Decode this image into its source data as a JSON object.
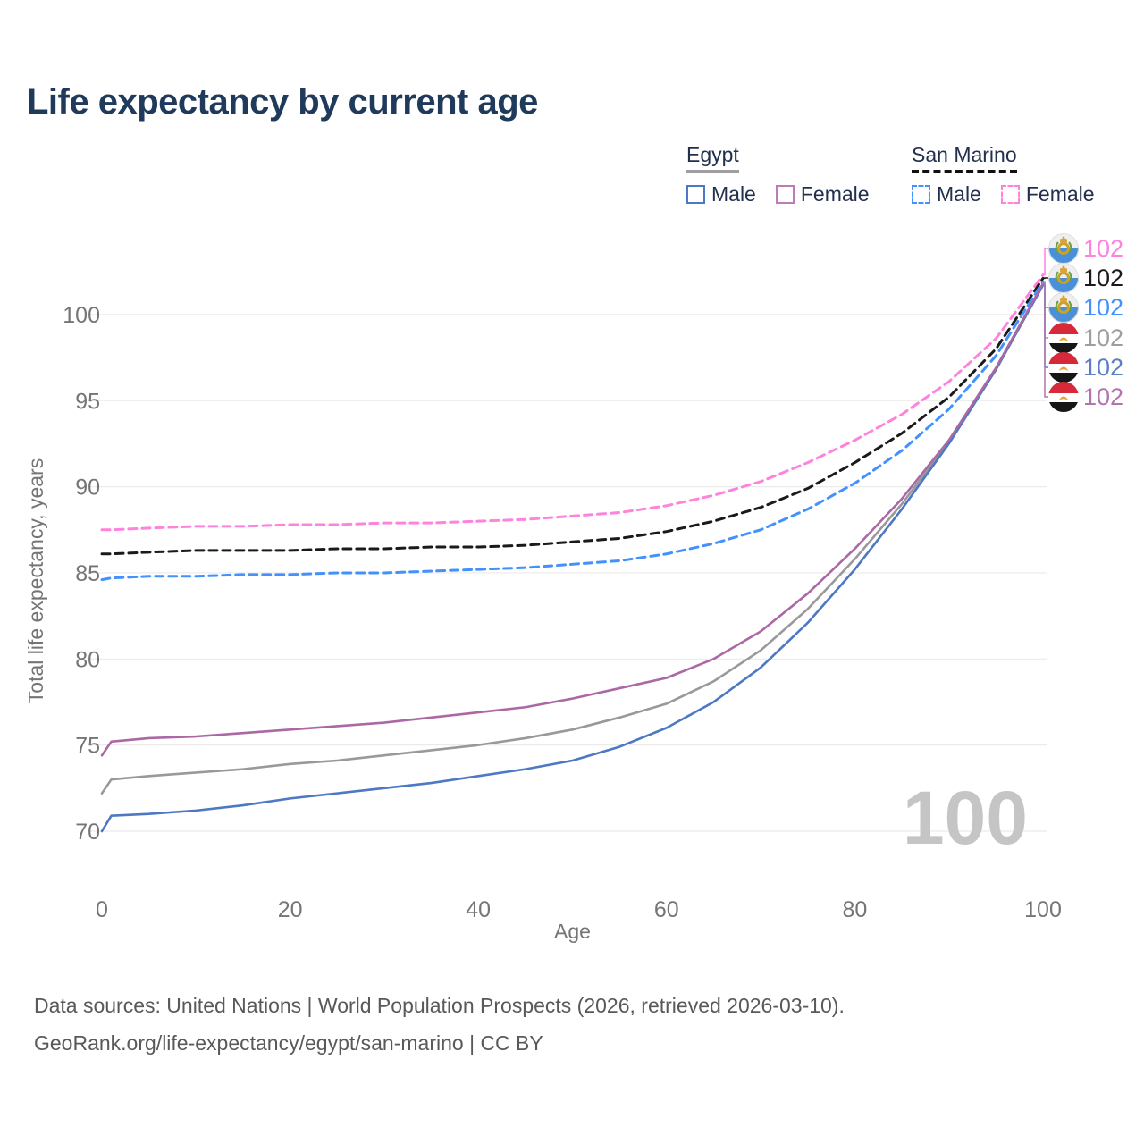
{
  "title": "Life expectancy by current age",
  "legend": {
    "groups": [
      {
        "name": "Egypt",
        "style": "solid",
        "underline_color": "#9e9e9e",
        "items": [
          {
            "label": "Male",
            "color": "#4d78c4"
          },
          {
            "label": "Female",
            "color": "#bd7cb5"
          }
        ]
      },
      {
        "name": "San Marino",
        "style": "dashed",
        "underline_color": "#111111",
        "items": [
          {
            "label": "Male",
            "color": "#4291ff"
          },
          {
            "label": "Female",
            "color": "#ff82dd"
          }
        ]
      }
    ]
  },
  "chart_data": {
    "type": "line",
    "title": "Life expectancy by current age",
    "xlabel": "Age",
    "ylabel": "Total life expectancy, years",
    "x_ticks": [
      0,
      20,
      40,
      60,
      80,
      100
    ],
    "y_ticks": [
      70,
      75,
      80,
      85,
      90,
      95,
      100
    ],
    "xlim": [
      0,
      100
    ],
    "ylim": [
      69,
      103
    ],
    "grid": "horizontal-only",
    "age_indicator": "100",
    "x": [
      0,
      1,
      5,
      10,
      15,
      20,
      25,
      30,
      35,
      40,
      45,
      50,
      55,
      60,
      65,
      70,
      75,
      80,
      85,
      90,
      95,
      100
    ],
    "series": [
      {
        "name": "San Marino Female",
        "country": "San Marino",
        "sex": "Female",
        "color": "#ff82dd",
        "dash": "dashed",
        "flag": "san-marino",
        "end_label": "102",
        "label_color": "#ff82dd",
        "row": 0,
        "values": [
          87.5,
          87.5,
          87.6,
          87.7,
          87.7,
          87.8,
          87.8,
          87.9,
          87.9,
          88.0,
          88.1,
          88.3,
          88.5,
          88.9,
          89.5,
          90.3,
          91.4,
          92.7,
          94.2,
          96.1,
          98.6,
          102.3
        ]
      },
      {
        "name": "San Marino Both sexes",
        "country": "San Marino",
        "sex": "Both",
        "color": "#1a1a1a",
        "dash": "dashed",
        "flag": "san-marino",
        "end_label": "102",
        "label_color": "#1a1a1a",
        "row": 1,
        "values": [
          86.1,
          86.1,
          86.2,
          86.3,
          86.3,
          86.3,
          86.4,
          86.4,
          86.5,
          86.5,
          86.6,
          86.8,
          87.0,
          87.4,
          88.0,
          88.8,
          89.9,
          91.4,
          93.1,
          95.2,
          98.0,
          102.1
        ]
      },
      {
        "name": "San Marino Male",
        "country": "San Marino",
        "sex": "Male",
        "color": "#4291ff",
        "dash": "dashed",
        "flag": "san-marino",
        "end_label": "102",
        "label_color": "#4291ff",
        "row": 2,
        "values": [
          84.6,
          84.7,
          84.8,
          84.8,
          84.9,
          84.9,
          85.0,
          85.0,
          85.1,
          85.2,
          85.3,
          85.5,
          85.7,
          86.1,
          86.7,
          87.5,
          88.7,
          90.2,
          92.1,
          94.5,
          97.6,
          101.9
        ]
      },
      {
        "name": "Egypt Both sexes",
        "country": "Egypt",
        "sex": "Both",
        "color": "#999999",
        "dash": "solid",
        "flag": "egypt",
        "end_label": "102",
        "label_color": "#9e9e9e",
        "row": 3,
        "values": [
          72.2,
          73.0,
          73.2,
          73.4,
          73.6,
          73.9,
          74.1,
          74.4,
          74.7,
          75.0,
          75.4,
          75.9,
          76.6,
          77.4,
          78.7,
          80.5,
          82.9,
          85.8,
          89.0,
          92.6,
          96.8,
          101.8
        ]
      },
      {
        "name": "Egypt Male",
        "country": "Egypt",
        "sex": "Male",
        "color": "#4d78c4",
        "dash": "solid",
        "flag": "egypt",
        "end_label": "102",
        "label_color": "#5b7fc4",
        "row": 4,
        "values": [
          70.0,
          70.9,
          71.0,
          71.2,
          71.5,
          71.9,
          72.2,
          72.5,
          72.8,
          73.2,
          73.6,
          74.1,
          74.9,
          76.0,
          77.5,
          79.5,
          82.1,
          85.2,
          88.7,
          92.5,
          96.8,
          101.7
        ]
      },
      {
        "name": "Egypt Female",
        "country": "Egypt",
        "sex": "Female",
        "color": "#ab68a5",
        "dash": "solid",
        "flag": "egypt",
        "end_label": "102",
        "label_color": "#b273ae",
        "row": 5,
        "values": [
          74.4,
          75.2,
          75.4,
          75.5,
          75.7,
          75.9,
          76.1,
          76.3,
          76.6,
          76.9,
          77.2,
          77.7,
          78.3,
          78.9,
          80.0,
          81.6,
          83.8,
          86.4,
          89.3,
          92.7,
          96.9,
          101.8
        ]
      }
    ]
  },
  "colors": {
    "title": "#203a5c",
    "legend_text": "#22304d",
    "axis_text": "#757575",
    "gridline": "#ebebeb",
    "watermark": "#c5c5c5",
    "footer_text": "#595959"
  },
  "footer": {
    "line1": "Data sources: United Nations | World Population Prospects (2026, retrieved 2026-03-10).",
    "line2": "GeoRank.org/life-expectancy/egypt/san-marino | CC BY"
  }
}
